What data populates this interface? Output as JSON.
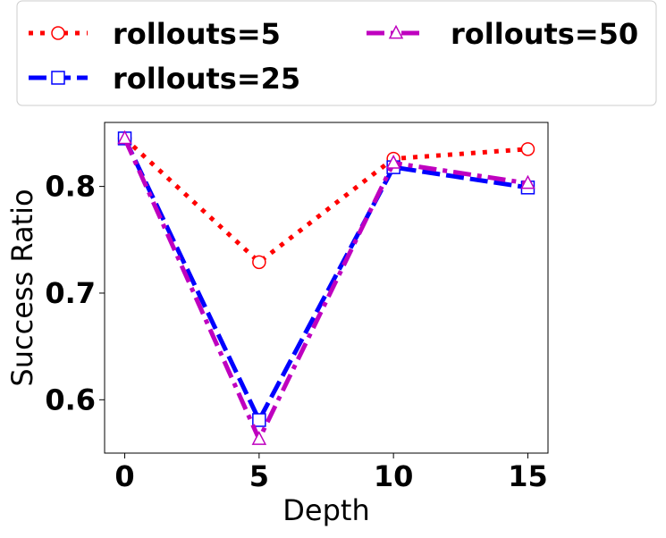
{
  "chart_data": {
    "type": "line",
    "xlabel": "Depth",
    "ylabel": "Success Ratio",
    "x": [
      0,
      5,
      10,
      15
    ],
    "xlim": [
      -0.75,
      15.75
    ],
    "ylim": [
      0.55,
      0.86
    ],
    "xticks": [
      0,
      5,
      10,
      15
    ],
    "yticks": [
      0.6,
      0.7,
      0.8
    ],
    "x_tick_labels": [
      "0",
      "5",
      "10",
      "15"
    ],
    "y_tick_labels": [
      "0.6",
      "0.7",
      "0.8"
    ],
    "grid": false,
    "legend_position": "top",
    "series": [
      {
        "name": "rollouts=5",
        "values": [
          0.845,
          0.729,
          0.826,
          0.835
        ],
        "color": "#ff0000",
        "line_style": "dotted",
        "marker": "circle"
      },
      {
        "name": "rollouts=25",
        "values": [
          0.845,
          0.581,
          0.818,
          0.799
        ],
        "color": "#0000ff",
        "line_style": "dashed",
        "marker": "square"
      },
      {
        "name": "rollouts=50",
        "values": [
          0.845,
          0.563,
          0.822,
          0.803
        ],
        "color": "#bf00bf",
        "line_style": "dashdot",
        "marker": "triangle"
      }
    ]
  }
}
